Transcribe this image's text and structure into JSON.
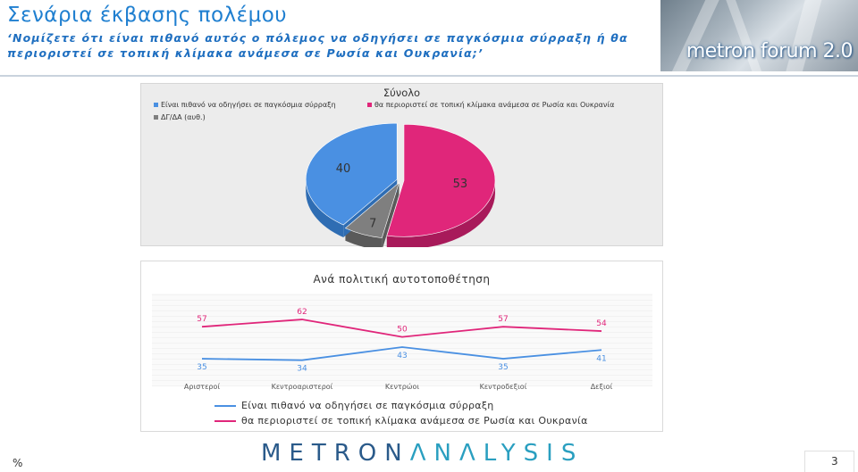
{
  "header": {
    "title": "Σενάρια έκβασης πολέμου",
    "question": "‘Νομίζετε ότι είναι πιθανό αυτός ο πόλεμος να οδηγήσει σε παγκόσμια σύρραξη ή θα περιοριστεί σε τοπική κλίμακα ανάμεσα σε Ρωσία και Ουκρανία;’",
    "brand": "metron forum 2.0"
  },
  "colors": {
    "blue": "#4a90e2",
    "magenta": "#e0267a",
    "gray": "#7f7f7f",
    "title_blue": "#1f7fd0"
  },
  "chart_data": [
    {
      "type": "pie",
      "title": "Σύνολο",
      "categories": [
        "Είναι πιθανό να οδηγήσει σε παγκόσμια σύρραξη",
        "θα περιοριστεί σε τοπική κλίμακα ανάμεσα σε Ρωσία και Ουκρανία",
        "ΔΓ/ΔΑ (αυθ.)"
      ],
      "values": [
        40,
        53,
        7
      ],
      "legend": "top-left"
    },
    {
      "type": "line",
      "title": "Ανά πολιτική αυτοτοποθέτηση",
      "categories": [
        "Αριστεροί",
        "Κεντροαριστεροί",
        "Κεντρώοι",
        "Κεντροδεξιοί",
        "Δεξιοί"
      ],
      "series": [
        {
          "name": "Είναι πιθανό να οδηγήσει σε παγκόσμια σύρραξη",
          "values": [
            35,
            34,
            43,
            35,
            41
          ]
        },
        {
          "name": "θα περιοριστεί σε τοπική κλίμακα ανάμεσα σε Ρωσία και Ουκρανία",
          "values": [
            57,
            62,
            50,
            57,
            54
          ]
        }
      ],
      "ylim": [
        0,
        100
      ],
      "legend": "bottom"
    }
  ],
  "footer": {
    "logo_part1": "METRON",
    "logo_part2": "ΛNΛLYSIS",
    "unit": "%",
    "page": "3"
  }
}
